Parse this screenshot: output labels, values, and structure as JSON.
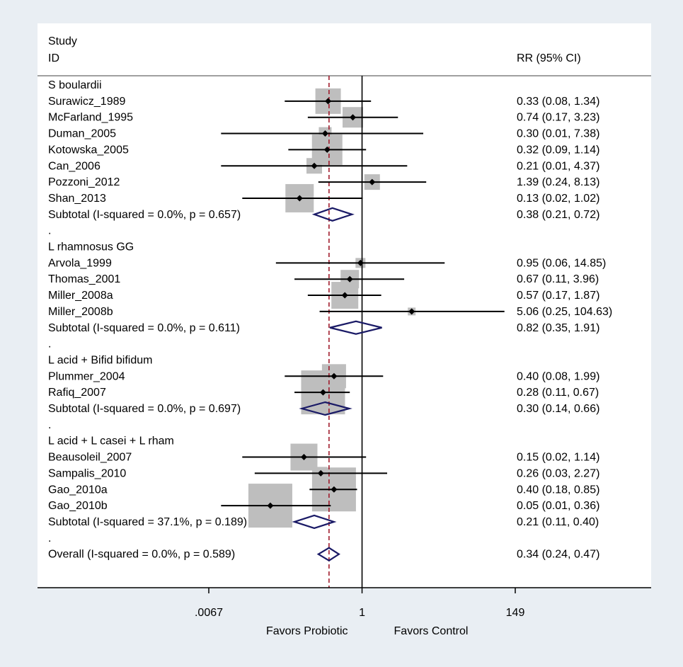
{
  "chart_data": {
    "type": "forest",
    "header": {
      "study": "Study",
      "id": "ID",
      "effect": "RR (95% CI)"
    },
    "x_scale": "log",
    "xlim": [
      0.0067,
      149
    ],
    "null_value": 1,
    "overall_estimate": 0.34,
    "ticks": [
      {
        "value": 0.0067,
        "label": ".0067"
      },
      {
        "value": 1,
        "label": "1"
      },
      {
        "value": 149,
        "label": "149"
      }
    ],
    "x_labels": {
      "left": "Favors Probiotic",
      "right": "Favors Control"
    },
    "rows": [
      {
        "kind": "group",
        "label": "S boulardii"
      },
      {
        "kind": "study",
        "label": "Surawicz_1989",
        "rr": 0.33,
        "lo": 0.08,
        "hi": 1.34,
        "weight": 36,
        "ci": "0.33 (0.08, 1.34)"
      },
      {
        "kind": "study",
        "label": "McFarland_1995",
        "rr": 0.74,
        "lo": 0.17,
        "hi": 3.23,
        "weight": 29,
        "ci": "0.74 (0.17, 3.23)"
      },
      {
        "kind": "study",
        "label": "Duman_2005",
        "rr": 0.3,
        "lo": 0.01,
        "hi": 7.38,
        "weight": 18,
        "ci": "0.30 (0.01, 7.38)"
      },
      {
        "kind": "study",
        "label": "Kotowska_2005",
        "rr": 0.32,
        "lo": 0.09,
        "hi": 1.14,
        "weight": 43,
        "ci": "0.32 (0.09, 1.14)"
      },
      {
        "kind": "study",
        "label": "Can_2006",
        "rr": 0.21,
        "lo": 0.01,
        "hi": 4.37,
        "weight": 22,
        "ci": "0.21 (0.01, 4.37)"
      },
      {
        "kind": "study",
        "label": "Pozzoni_2012",
        "rr": 1.39,
        "lo": 0.24,
        "hi": 8.13,
        "weight": 22,
        "ci": "1.39 (0.24, 8.13)"
      },
      {
        "kind": "study",
        "label": "Shan_2013",
        "rr": 0.13,
        "lo": 0.02,
        "hi": 1.02,
        "weight": 40,
        "ci": "0.13 (0.02, 1.02)"
      },
      {
        "kind": "subtotal",
        "label": "Subtotal  (I-squared = 0.0%, p = 0.657)",
        "rr": 0.38,
        "lo": 0.21,
        "hi": 0.72,
        "ci": "0.38 (0.21, 0.72)"
      },
      {
        "kind": "spacer",
        "label": "."
      },
      {
        "kind": "group",
        "label": "L rhamnosus GG"
      },
      {
        "kind": "study",
        "label": "Arvola_1999",
        "rr": 0.95,
        "lo": 0.06,
        "hi": 14.85,
        "weight": 14,
        "ci": "0.95 (0.06, 14.85)"
      },
      {
        "kind": "study",
        "label": "Thomas_2001",
        "rr": 0.67,
        "lo": 0.11,
        "hi": 3.96,
        "weight": 26,
        "ci": "0.67 (0.11, 3.96)"
      },
      {
        "kind": "study",
        "label": "Miller_2008a",
        "rr": 0.57,
        "lo": 0.17,
        "hi": 1.87,
        "weight": 38,
        "ci": "0.57 (0.17, 1.87)"
      },
      {
        "kind": "study",
        "label": "Miller_2008b",
        "rr": 5.06,
        "lo": 0.25,
        "hi": 104.63,
        "weight": 11,
        "ci": "5.06 (0.25, 104.63)"
      },
      {
        "kind": "subtotal",
        "label": "Subtotal  (I-squared = 0.0%, p = 0.611)",
        "rr": 0.82,
        "lo": 0.35,
        "hi": 1.91,
        "ci": "0.82 (0.35, 1.91)"
      },
      {
        "kind": "spacer",
        "label": "."
      },
      {
        "kind": "group",
        "label": "L acid + Bifid bifidum"
      },
      {
        "kind": "study",
        "label": "Plummer_2004",
        "rr": 0.4,
        "lo": 0.08,
        "hi": 1.99,
        "weight": 34,
        "ci": "0.40 (0.08, 1.99)"
      },
      {
        "kind": "study",
        "label": "Rafiq_2007",
        "rr": 0.28,
        "lo": 0.11,
        "hi": 0.67,
        "weight": 62,
        "ci": "0.28 (0.11, 0.67)"
      },
      {
        "kind": "subtotal",
        "label": "Subtotal  (I-squared = 0.0%, p = 0.697)",
        "rr": 0.3,
        "lo": 0.14,
        "hi": 0.66,
        "ci": "0.30 (0.14, 0.66)"
      },
      {
        "kind": "spacer",
        "label": "."
      },
      {
        "kind": "group",
        "label": "L acid + L casei + L rham"
      },
      {
        "kind": "study",
        "label": "Beausoleil_2007",
        "rr": 0.15,
        "lo": 0.02,
        "hi": 1.14,
        "weight": 38,
        "ci": "0.15 (0.02, 1.14)"
      },
      {
        "kind": "study",
        "label": "Sampalis_2010",
        "rr": 0.26,
        "lo": 0.03,
        "hi": 2.27,
        "weight": 18,
        "ci": "0.26 (0.03, 2.27)"
      },
      {
        "kind": "study",
        "label": "Gao_2010a",
        "rr": 0.4,
        "lo": 0.18,
        "hi": 0.85,
        "weight": 62,
        "ci": "0.40 (0.18, 0.85)"
      },
      {
        "kind": "study",
        "label": "Gao_2010b",
        "rr": 0.05,
        "lo": 0.01,
        "hi": 0.36,
        "weight": 62,
        "ci": "0.05 (0.01, 0.36)"
      },
      {
        "kind": "subtotal",
        "label": "Subtotal  (I-squared = 37.1%, p = 0.189)",
        "rr": 0.21,
        "lo": 0.11,
        "hi": 0.4,
        "ci": "0.21 (0.11, 0.40)"
      },
      {
        "kind": "spacer",
        "label": "."
      },
      {
        "kind": "overall",
        "label": "Overall  (I-squared = 0.0%, p = 0.589)",
        "rr": 0.34,
        "lo": 0.24,
        "hi": 0.47,
        "ci": "0.34 (0.24, 0.47)"
      }
    ],
    "colors": {
      "background": "#e9eef3",
      "panel": "#ffffff",
      "weight_box": "#bebebe",
      "diamond": "#1a1a66",
      "overall_line": "#a01c2c",
      "ink": "#000000"
    }
  }
}
